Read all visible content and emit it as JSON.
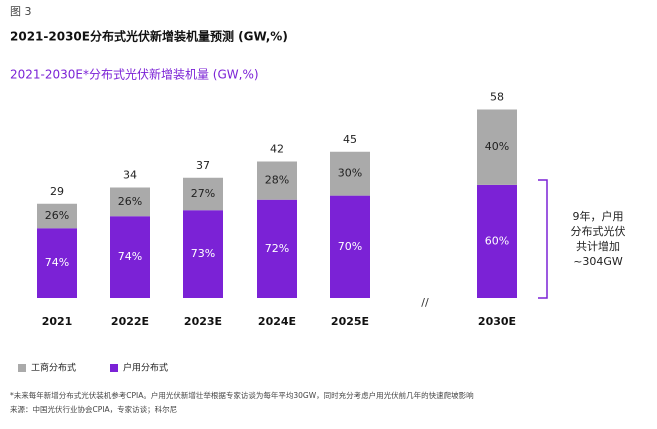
{
  "chart_data": {
    "type": "stacked-percent-bar",
    "figure_label": "图 3",
    "title": "2021-2030E分布式光伏新增装机量预测 (GW,%)",
    "subtitle": "2021-2030E*分布式光伏新增装机量 (GW,%)",
    "categories": [
      "2021",
      "2022E",
      "2023E",
      "2024E",
      "2025E",
      "2030E"
    ],
    "totals": [
      29,
      34,
      37,
      42,
      45,
      58
    ],
    "series": [
      {
        "name": "工商分布式",
        "color": "#aaaaaa",
        "values": [
          26,
          26,
          27,
          28,
          30,
          40
        ],
        "value_labels": [
          "26%",
          "26%",
          "27%",
          "28%",
          "30%",
          "40%"
        ]
      },
      {
        "name": "户用分布式",
        "color": "#7b22d6",
        "values": [
          74,
          74,
          73,
          72,
          70,
          60
        ],
        "value_labels": [
          "74%",
          "74%",
          "73%",
          "72%",
          "70%",
          "60%"
        ]
      }
    ],
    "break_label": "//",
    "annotation": [
      "9年，户用",
      "分布式光伏",
      "共计增加",
      "~304GW"
    ],
    "footnotes": [
      "*未来每年新增分布式光伏装机参考CPIA。户用光伏新增壮举根据专家访谈为每年平均30GW，同时充分考虑户用光伏前几年的快速爬坡影响",
      "来源：中国光伏行业协会CPIA，专家访谈；科尔尼"
    ]
  }
}
